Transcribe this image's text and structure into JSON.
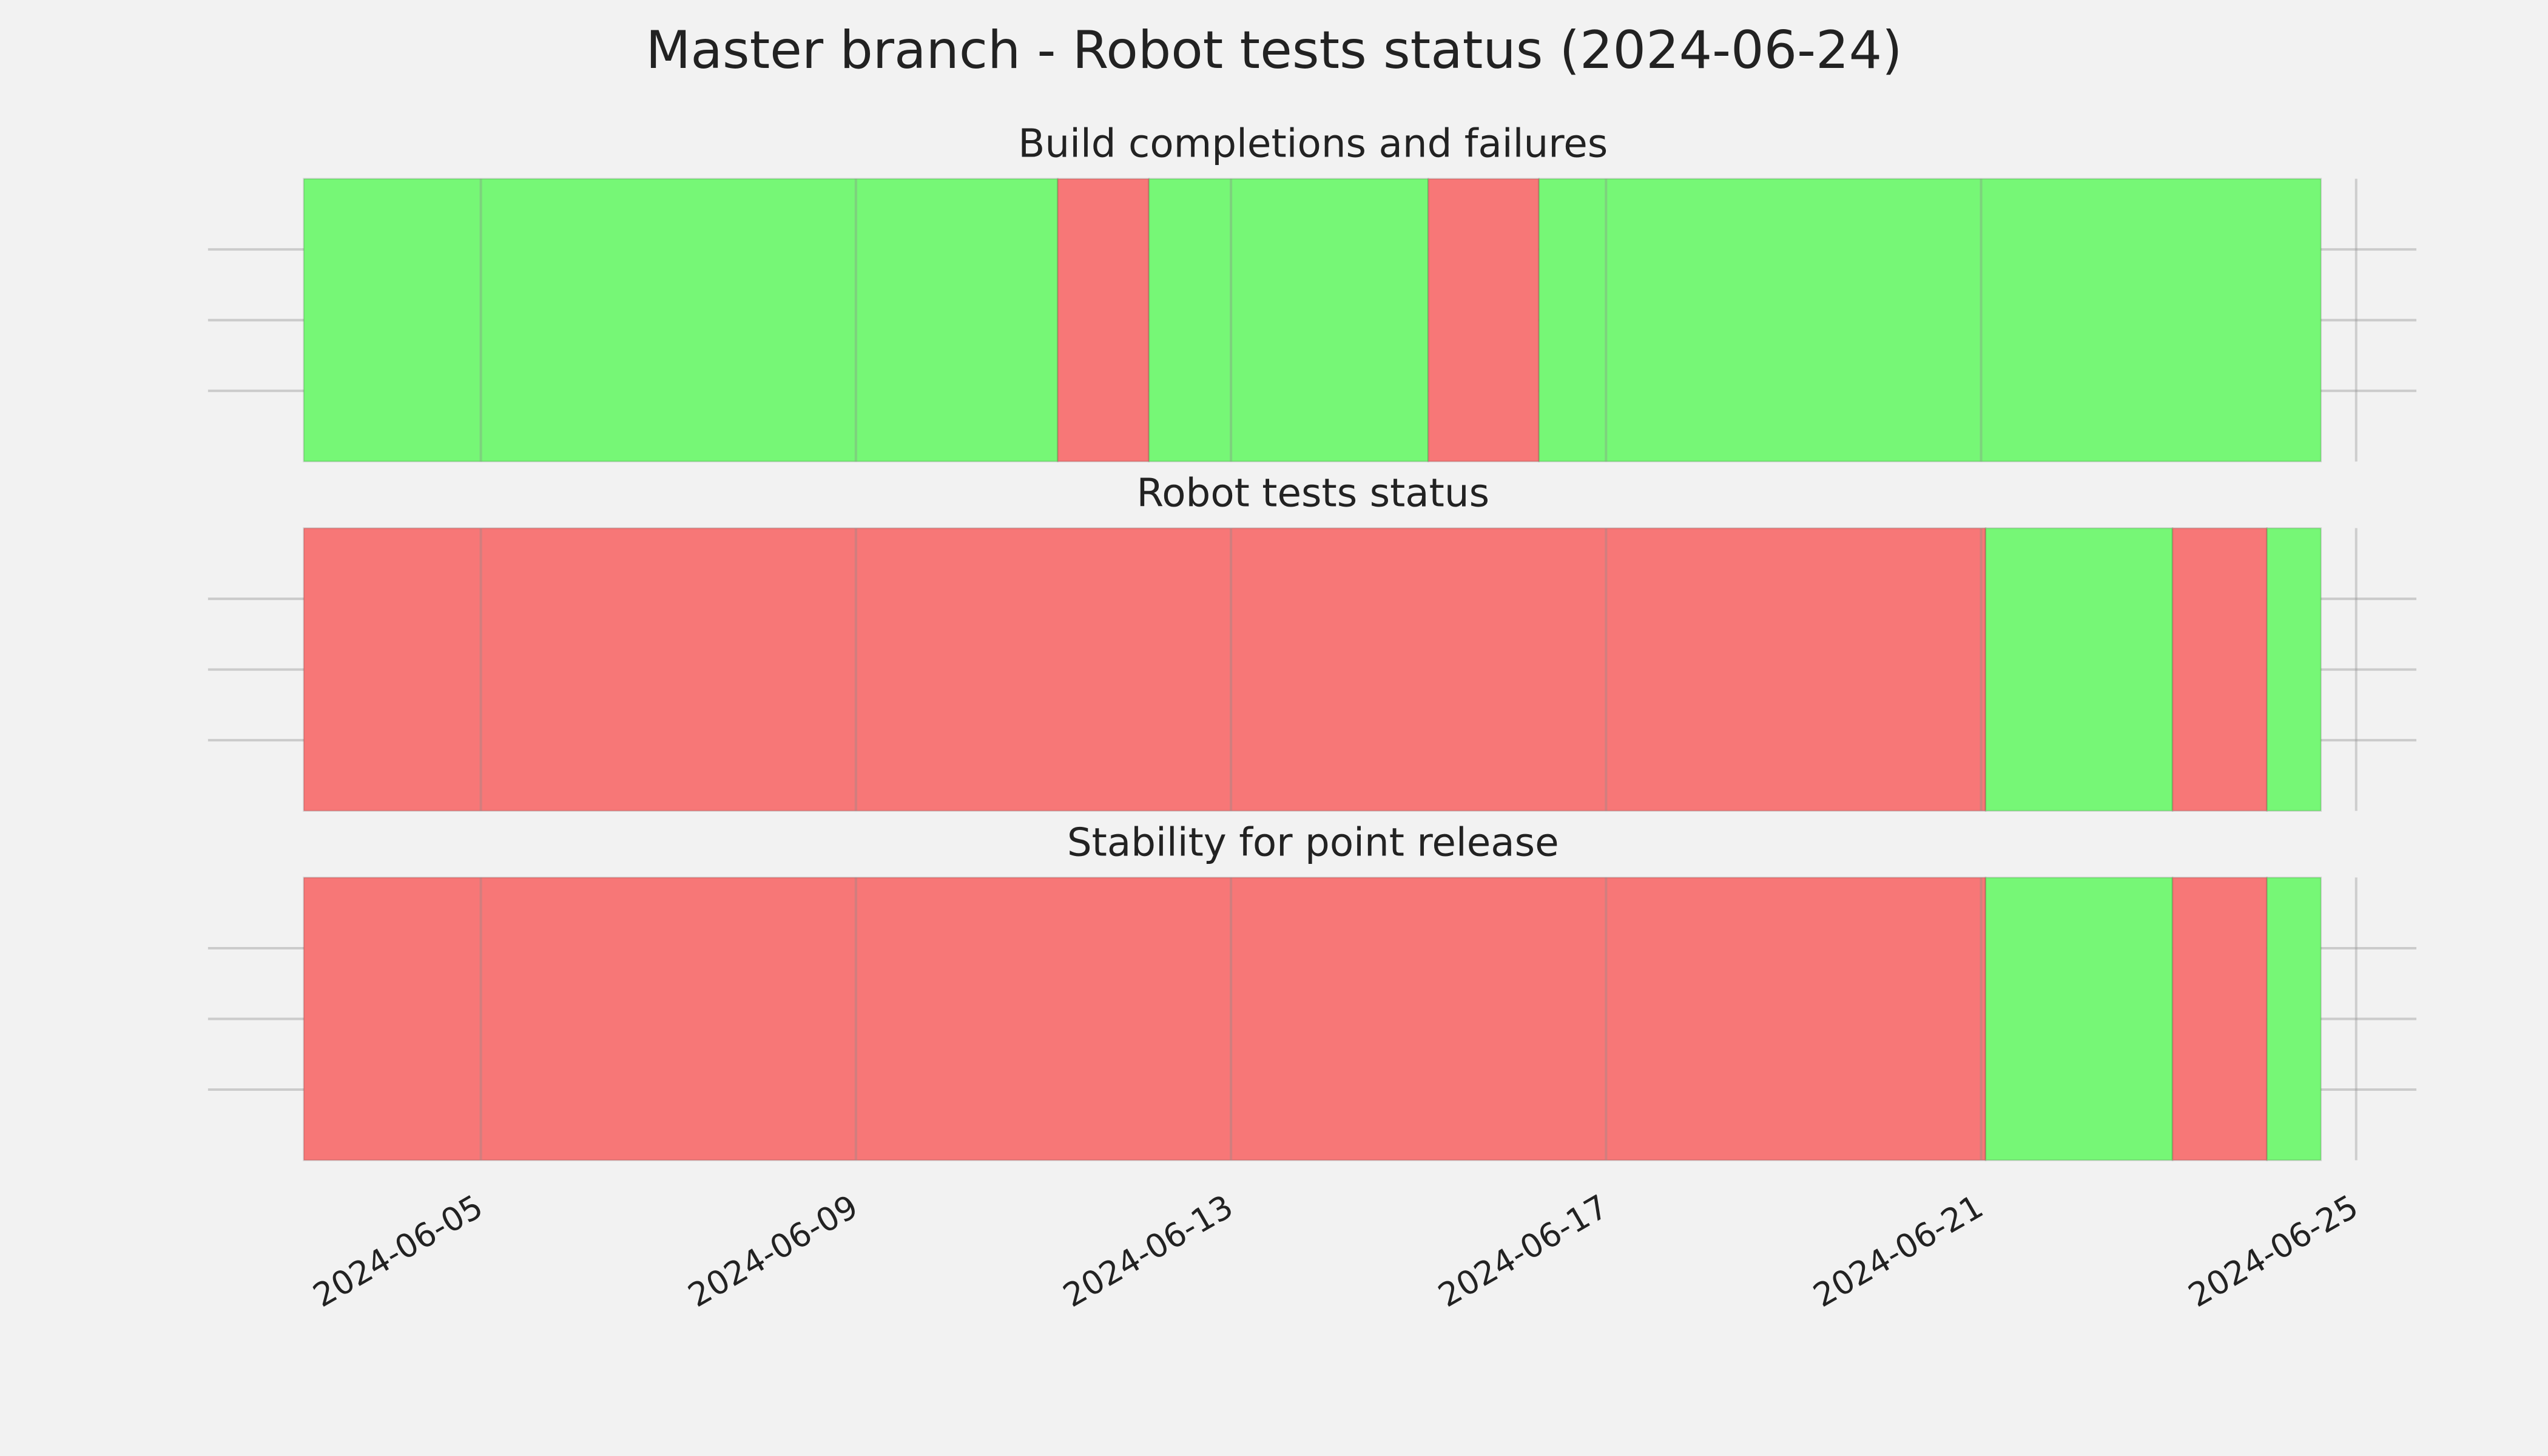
{
  "chart_data": {
    "type": "timeline",
    "title": "Master branch - Robot tests status (2024-06-24)",
    "xlim": [
      "2024-06-02T02:10",
      "2024-06-25T15:25"
    ],
    "xticks": [
      "2024-06-05",
      "2024-06-09",
      "2024-06-13",
      "2024-06-17",
      "2024-06-21",
      "2024-06-25"
    ],
    "ylim": [
      0,
      1
    ],
    "ygrid": [
      0.25,
      0.5,
      0.75
    ],
    "grid": true,
    "panels": [
      {
        "title": "Build completions and failures",
        "segments": [
          {
            "start": "2024-06-03T02:40",
            "end": "2024-06-11T03:40",
            "color": "#76f776"
          },
          {
            "start": "2024-06-11T03:40",
            "end": "2024-06-12T03:00",
            "color": "#f77777"
          },
          {
            "start": "2024-06-12T03:00",
            "end": "2024-06-15T02:30",
            "color": "#76f776"
          },
          {
            "start": "2024-06-15T02:30",
            "end": "2024-06-16T06:50",
            "color": "#f77777"
          },
          {
            "start": "2024-06-16T06:50",
            "end": "2024-06-24T15:00",
            "color": "#76f776"
          }
        ]
      },
      {
        "title": "Robot tests status",
        "segments": [
          {
            "start": "2024-06-03T02:40",
            "end": "2024-06-21T01:10",
            "color": "#f77777"
          },
          {
            "start": "2024-06-21T01:10",
            "end": "2024-06-23T01:00",
            "color": "#76f776"
          },
          {
            "start": "2024-06-23T01:00",
            "end": "2024-06-24T01:10",
            "color": "#f77777"
          },
          {
            "start": "2024-06-24T01:10",
            "end": "2024-06-24T15:00",
            "color": "#76f776"
          }
        ]
      },
      {
        "title": "Stability for point release",
        "segments": [
          {
            "start": "2024-06-03T02:40",
            "end": "2024-06-21T01:10",
            "color": "#f77777"
          },
          {
            "start": "2024-06-21T01:10",
            "end": "2024-06-23T01:00",
            "color": "#76f776"
          },
          {
            "start": "2024-06-23T01:00",
            "end": "2024-06-24T01:10",
            "color": "#f77777"
          },
          {
            "start": "2024-06-24T01:10",
            "end": "2024-06-24T15:00",
            "color": "#76f776"
          }
        ]
      }
    ]
  }
}
